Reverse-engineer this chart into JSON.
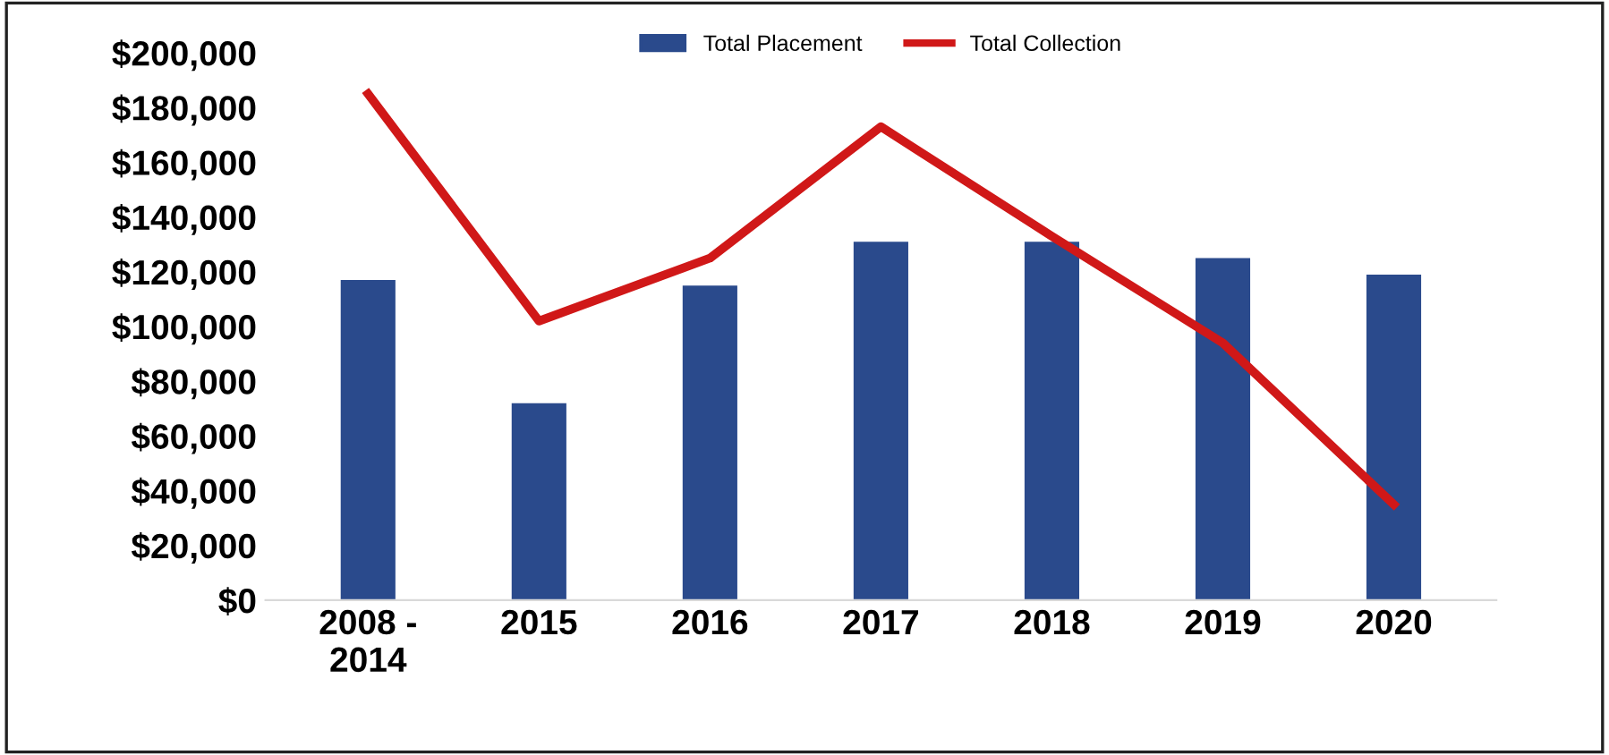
{
  "chart_data": {
    "type": "bar",
    "categories": [
      "2008 -\n2014",
      "2015",
      "2016",
      "2017",
      "2018",
      "2019",
      "2020"
    ],
    "series": [
      {
        "name": "Total Placement",
        "color": "#2a4a8c",
        "values": [
          117000,
          72000,
          115000,
          131000,
          131000,
          125000,
          119000
        ]
      },
      {
        "name": "Total Collection",
        "type": "line",
        "color": "#d01818",
        "values": [
          185000,
          102000,
          125000,
          173000,
          133000,
          94000,
          35000
        ]
      }
    ],
    "ylim": [
      0,
      200000
    ],
    "yticks": [
      {
        "value": 0,
        "label": "$0"
      },
      {
        "value": 20000,
        "label": "$20,000"
      },
      {
        "value": 40000,
        "label": "$40,000"
      },
      {
        "value": 60000,
        "label": "$60,000"
      },
      {
        "value": 80000,
        "label": "$80,000"
      },
      {
        "value": 100000,
        "label": "$100,000"
      },
      {
        "value": 120000,
        "label": "$120,000"
      },
      {
        "value": 140000,
        "label": "$140,000"
      },
      {
        "value": 160000,
        "label": "$160,000"
      },
      {
        "value": 180000,
        "label": "$180,000"
      },
      {
        "value": 200000,
        "label": "$200,000"
      }
    ],
    "grid": false,
    "legend": "top",
    "marker": "none",
    "line_style": "solid"
  }
}
